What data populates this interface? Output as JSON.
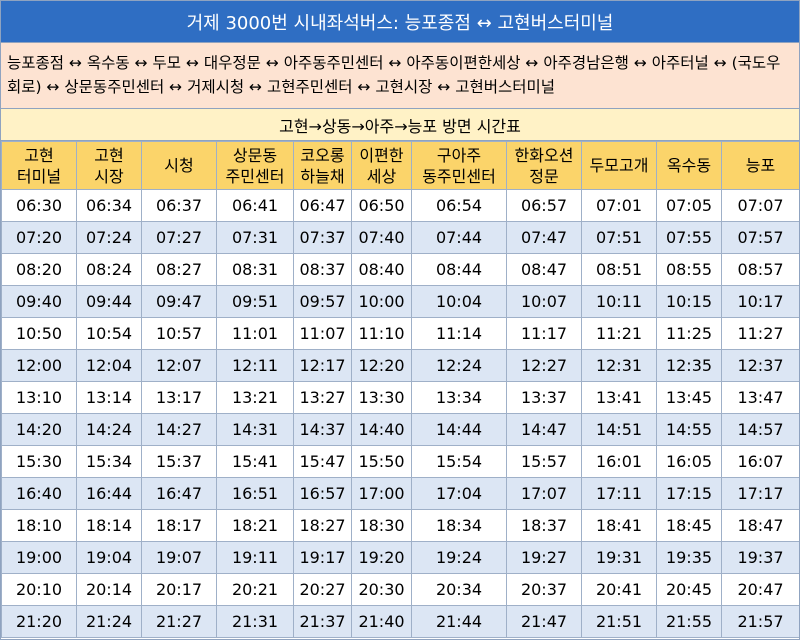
{
  "title": "거제 3000번 시내좌석버스: 능포종점 ↔ 고현버스터미널",
  "route": "능포종점 ↔ 옥수동 ↔ 두모 ↔ 대우정문 ↔ 아주동주민센터 ↔ 아주동이편한세상 ↔ 아주경남은행 ↔ 아주터널 ↔ (국도우회로) ↔ 상문동주민센터 ↔ 거제시청 ↔ 고현주민센터 ↔ 고현시장 ↔ 고현버스터미널",
  "table": {
    "caption": "고현→상동→아주→능포 방면 시간표",
    "header": [
      [
        "고현",
        "터미널"
      ],
      [
        "고현",
        "시장"
      ],
      [
        "시청"
      ],
      [
        "상문동",
        "주민센터"
      ],
      [
        "코오롱",
        "하늘채"
      ],
      [
        "이편한",
        "세상"
      ],
      [
        "구아주",
        "동주민센터"
      ],
      [
        "한화오션",
        "정문"
      ],
      [
        "두모고개"
      ],
      [
        "옥수동"
      ],
      [
        "능포"
      ]
    ],
    "rows": [
      [
        "06:30",
        "06:34",
        "06:37",
        "06:41",
        "06:47",
        "06:50",
        "06:54",
        "06:57",
        "07:01",
        "07:05",
        "07:07"
      ],
      [
        "07:20",
        "07:24",
        "07:27",
        "07:31",
        "07:37",
        "07:40",
        "07:44",
        "07:47",
        "07:51",
        "07:55",
        "07:57"
      ],
      [
        "08:20",
        "08:24",
        "08:27",
        "08:31",
        "08:37",
        "08:40",
        "08:44",
        "08:47",
        "08:51",
        "08:55",
        "08:57"
      ],
      [
        "09:40",
        "09:44",
        "09:47",
        "09:51",
        "09:57",
        "10:00",
        "10:04",
        "10:07",
        "10:11",
        "10:15",
        "10:17"
      ],
      [
        "10:50",
        "10:54",
        "10:57",
        "11:01",
        "11:07",
        "11:10",
        "11:14",
        "11:17",
        "11:21",
        "11:25",
        "11:27"
      ],
      [
        "12:00",
        "12:04",
        "12:07",
        "12:11",
        "12:17",
        "12:20",
        "12:24",
        "12:27",
        "12:31",
        "12:35",
        "12:37"
      ],
      [
        "13:10",
        "13:14",
        "13:17",
        "13:21",
        "13:27",
        "13:30",
        "13:34",
        "13:37",
        "13:41",
        "13:45",
        "13:47"
      ],
      [
        "14:20",
        "14:24",
        "14:27",
        "14:31",
        "14:37",
        "14:40",
        "14:44",
        "14:47",
        "14:51",
        "14:55",
        "14:57"
      ],
      [
        "15:30",
        "15:34",
        "15:37",
        "15:41",
        "15:47",
        "15:50",
        "15:54",
        "15:57",
        "16:01",
        "16:05",
        "16:07"
      ],
      [
        "16:40",
        "16:44",
        "16:47",
        "16:51",
        "16:57",
        "17:00",
        "17:04",
        "17:07",
        "17:11",
        "17:15",
        "17:17"
      ],
      [
        "18:10",
        "18:14",
        "18:17",
        "18:21",
        "18:27",
        "18:30",
        "18:34",
        "18:37",
        "18:41",
        "18:45",
        "18:47"
      ],
      [
        "19:00",
        "19:04",
        "19:07",
        "19:11",
        "19:17",
        "19:20",
        "19:24",
        "19:27",
        "19:31",
        "19:35",
        "19:37"
      ],
      [
        "20:10",
        "20:14",
        "20:17",
        "20:21",
        "20:27",
        "20:30",
        "20:34",
        "20:37",
        "20:41",
        "20:45",
        "20:47"
      ],
      [
        "21:20",
        "21:24",
        "21:27",
        "21:31",
        "21:37",
        "21:40",
        "21:44",
        "21:47",
        "21:51",
        "21:55",
        "21:57"
      ]
    ]
  }
}
